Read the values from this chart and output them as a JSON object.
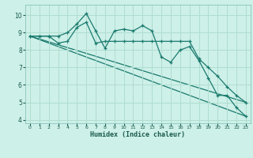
{
  "title": "",
  "xlabel": "Humidex (Indice chaleur)",
  "ylabel": "",
  "bg_color": "#cdf0e8",
  "grid_color": "#b0ddd0",
  "line_color": "#1a7a6e",
  "xlim": [
    -0.5,
    23.5
  ],
  "ylim": [
    3.8,
    10.6
  ],
  "xticks": [
    0,
    1,
    2,
    3,
    4,
    5,
    6,
    7,
    8,
    9,
    10,
    11,
    12,
    13,
    14,
    15,
    16,
    17,
    18,
    19,
    20,
    21,
    22,
    23
  ],
  "yticks": [
    4,
    5,
    6,
    7,
    8,
    9,
    10
  ],
  "line1_x": [
    0,
    1,
    2,
    3,
    4,
    5,
    6,
    7,
    8,
    9,
    10,
    11,
    12,
    13,
    14,
    15,
    16,
    17,
    18,
    19,
    20,
    21,
    22,
    23
  ],
  "line1_y": [
    8.8,
    8.8,
    8.8,
    8.8,
    9.0,
    9.5,
    10.1,
    9.1,
    8.1,
    9.1,
    9.2,
    9.1,
    9.4,
    9.1,
    7.6,
    7.3,
    8.0,
    8.2,
    7.4,
    6.4,
    5.4,
    5.4,
    4.7,
    4.2
  ],
  "line2_x": [
    0,
    1,
    2,
    3,
    4,
    5,
    6,
    7,
    8,
    9,
    10,
    11,
    12,
    13,
    14,
    15,
    16,
    17,
    18,
    19,
    20,
    21,
    22,
    23
  ],
  "line2_y": [
    8.8,
    8.8,
    8.8,
    8.4,
    8.5,
    9.3,
    9.6,
    8.4,
    8.5,
    8.5,
    8.5,
    8.5,
    8.5,
    8.5,
    8.5,
    8.5,
    8.5,
    8.5,
    7.5,
    7.0,
    6.5,
    5.9,
    5.4,
    5.0
  ],
  "line3_x": [
    0,
    23
  ],
  "line3_y": [
    8.8,
    4.2
  ],
  "line4_x": [
    0,
    23
  ],
  "line4_y": [
    8.8,
    5.0
  ],
  "marker": "+"
}
